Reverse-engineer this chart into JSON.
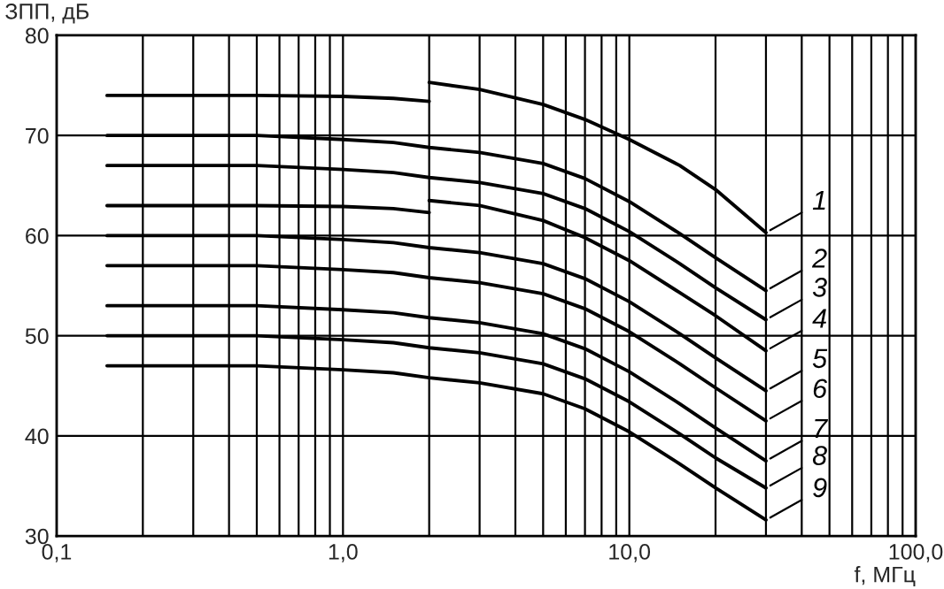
{
  "chart_data": {
    "type": "line",
    "xlabel": "f, МГц",
    "ylabel": "ЗПП, дБ",
    "log": "x",
    "xlim": [
      0.1,
      100
    ],
    "ylim": [
      30,
      80
    ],
    "xticks": [
      {
        "value": 0.1,
        "label": "0,1"
      },
      {
        "value": 1,
        "label": "1,0"
      },
      {
        "value": 10,
        "label": "10,0"
      },
      {
        "value": 100,
        "label": "100,0"
      }
    ],
    "yticks": [
      30,
      40,
      50,
      60,
      70,
      80
    ],
    "grid": true,
    "legend": "right",
    "marker": "none",
    "line_style": "solid",
    "series": [
      {
        "name": "1",
        "color": "#000000",
        "x": [
          0.15,
          0.5,
          1,
          1.5,
          2,
          2,
          3,
          5,
          7,
          10,
          15,
          20,
          30
        ],
        "values": [
          74,
          74,
          73.9,
          73.7,
          73.4,
          75.3,
          74.6,
          73.1,
          71.6,
          69.6,
          67,
          64.6,
          60.3
        ]
      },
      {
        "name": "2",
        "color": "#000000",
        "x": [
          0.15,
          0.5,
          1,
          1.5,
          2,
          3,
          5,
          7,
          10,
          15,
          20,
          30
        ],
        "values": [
          70,
          70,
          69.6,
          69.3,
          68.8,
          68.3,
          67.2,
          65.7,
          63.4,
          60.2,
          57.8,
          54.5
        ]
      },
      {
        "name": "3",
        "color": "#000000",
        "x": [
          0.15,
          0.5,
          1,
          1.5,
          2,
          3,
          5,
          7,
          10,
          15,
          20,
          30
        ],
        "values": [
          67,
          67,
          66.6,
          66.3,
          65.8,
          65.3,
          64.2,
          62.7,
          60.4,
          57.2,
          54.8,
          51.6
        ]
      },
      {
        "name": "4",
        "color": "#000000",
        "x": [
          0.15,
          0.5,
          1,
          1.5,
          2,
          2,
          3,
          5,
          7,
          10,
          15,
          20,
          30
        ],
        "values": [
          63,
          63,
          62.9,
          62.7,
          62.3,
          63.5,
          63,
          61.5,
          59.8,
          57.5,
          54.3,
          52,
          48.5
        ]
      },
      {
        "name": "5",
        "color": "#000000",
        "x": [
          0.15,
          0.5,
          1,
          1.5,
          2,
          3,
          5,
          7,
          10,
          15,
          20,
          30
        ],
        "values": [
          60,
          60,
          59.6,
          59.3,
          58.8,
          58.3,
          57.2,
          55.7,
          53.4,
          50.2,
          47.8,
          44.5
        ]
      },
      {
        "name": "6",
        "color": "#000000",
        "x": [
          0.15,
          0.5,
          1,
          1.5,
          2,
          3,
          5,
          7,
          10,
          15,
          20,
          30
        ],
        "values": [
          57,
          57,
          56.6,
          56.3,
          55.8,
          55.3,
          54.2,
          52.7,
          50.4,
          47.2,
          44.8,
          41.5
        ]
      },
      {
        "name": "7",
        "color": "#000000",
        "x": [
          0.15,
          0.5,
          1,
          1.5,
          2,
          3,
          5,
          7,
          10,
          15,
          20,
          30
        ],
        "values": [
          53,
          53,
          52.6,
          52.3,
          51.8,
          51.3,
          50.2,
          48.7,
          46.4,
          43.2,
          40.8,
          37.5
        ]
      },
      {
        "name": "8",
        "color": "#000000",
        "x": [
          0.15,
          0.5,
          1,
          1.5,
          2,
          3,
          5,
          7,
          10,
          15,
          20,
          30
        ],
        "values": [
          50,
          50,
          49.6,
          49.3,
          48.8,
          48.3,
          47.2,
          45.7,
          43.4,
          40.2,
          37.8,
          34.8
        ]
      },
      {
        "name": "9",
        "color": "#000000",
        "x": [
          0.15,
          0.5,
          1,
          1.5,
          2,
          3,
          5,
          7,
          10,
          15,
          20,
          30
        ],
        "values": [
          47,
          47,
          46.6,
          46.3,
          45.8,
          45.3,
          44.2,
          42.7,
          40.4,
          37.2,
          34.8,
          31.6
        ]
      }
    ]
  }
}
